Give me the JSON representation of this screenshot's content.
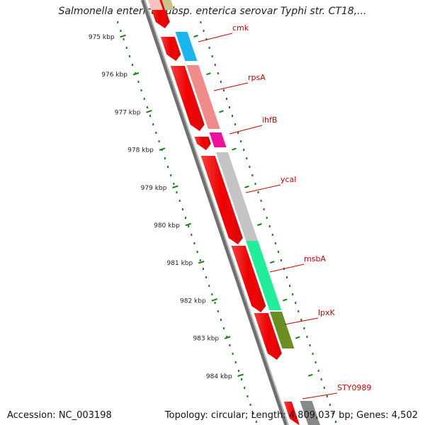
{
  "title": "Salmonella enterica subsp. enterica serovar Typhi str. CT18,...",
  "footer": {
    "accession": "Accession: NC_003198",
    "summary": "Topology: circular; Length: 4,809,037 bp; Genes: 4,502"
  },
  "ticks": [
    "975 kbp",
    "976 kbp",
    "977 kbp",
    "978 kbp",
    "979 kbp",
    "980 kbp",
    "981 kbp",
    "982 kbp",
    "983 kbp",
    "984 kbp"
  ],
  "genes": [
    {
      "label": "cmk",
      "color": "#1ab4ee"
    },
    {
      "label": "rpsA",
      "color": "#f08b8b"
    },
    {
      "label": "ihfB",
      "color": "#ee1199"
    },
    {
      "label": "ycaI",
      "color": "#c4c4c4"
    },
    {
      "label": "msbA",
      "color": "#22ee99"
    },
    {
      "label": "lpxK",
      "color": "#6b8e23"
    },
    {
      "label": "STY0989",
      "color": "#888888"
    }
  ],
  "colors": {
    "cds": "#ee0000",
    "backbone": "#6f6f6f",
    "tick": "#1b7d1b",
    "label": "#cc0000"
  }
}
